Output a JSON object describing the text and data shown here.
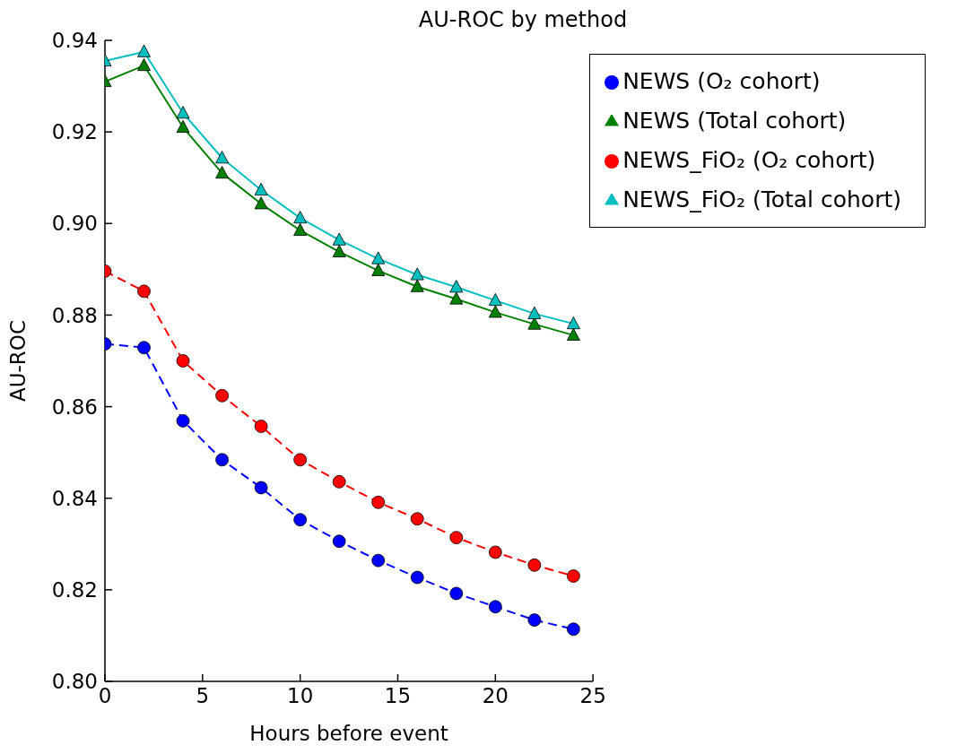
{
  "chart_data": {
    "type": "line",
    "title": "AU-ROC by method",
    "xlabel": "Hours before event",
    "ylabel": "AU-ROC",
    "x": [
      0,
      2,
      4,
      6,
      8,
      10,
      12,
      14,
      16,
      18,
      20,
      22,
      24
    ],
    "series": [
      {
        "name": "NEWS (O₂ cohort)",
        "color": "#0000ff",
        "marker": "circle",
        "line_style": "dashed",
        "values": [
          0.8737,
          0.8729,
          0.8569,
          0.8484,
          0.8423,
          0.8353,
          0.8306,
          0.8264,
          0.8227,
          0.8192,
          0.8163,
          0.8134,
          0.8114
        ]
      },
      {
        "name": "NEWS (Total cohort)",
        "color": "#008000",
        "marker": "triangle",
        "line_style": "solid",
        "values": [
          0.931,
          0.9345,
          0.921,
          0.911,
          0.9043,
          0.8985,
          0.8938,
          0.8897,
          0.8862,
          0.8835,
          0.8806,
          0.878,
          0.8756
        ]
      },
      {
        "name": "NEWS_FiO₂ (O₂ cohort)",
        "color": "#ff0000",
        "marker": "circle",
        "line_style": "dashed",
        "values": [
          0.8896,
          0.8852,
          0.87,
          0.8624,
          0.8557,
          0.8484,
          0.8436,
          0.8391,
          0.8355,
          0.8314,
          0.8282,
          0.8254,
          0.823
        ]
      },
      {
        "name": "NEWS_FiO₂ (Total cohort)",
        "color": "#00bfbf",
        "marker": "triangle",
        "line_style": "solid",
        "values": [
          0.9355,
          0.9375,
          0.9241,
          0.9143,
          0.9073,
          0.9012,
          0.8964,
          0.8923,
          0.8888,
          0.8861,
          0.8832,
          0.8803,
          0.8781
        ]
      }
    ],
    "xlim": [
      0,
      25
    ],
    "xticks": [
      0,
      5,
      10,
      15,
      20,
      25
    ],
    "ylim": [
      0.8,
      0.94
    ],
    "yticks": [
      {
        "value": 0.8,
        "label": "0.80"
      },
      {
        "value": 0.82,
        "label": "0.82"
      },
      {
        "value": 0.84,
        "label": "0.84"
      },
      {
        "value": 0.86,
        "label": "0.86"
      },
      {
        "value": 0.88,
        "label": "0.88"
      },
      {
        "value": 0.9,
        "label": "0.90"
      },
      {
        "value": 0.92,
        "label": "0.92"
      },
      {
        "value": 0.94,
        "label": "0.94"
      }
    ],
    "grid": false,
    "legend": "top right"
  }
}
